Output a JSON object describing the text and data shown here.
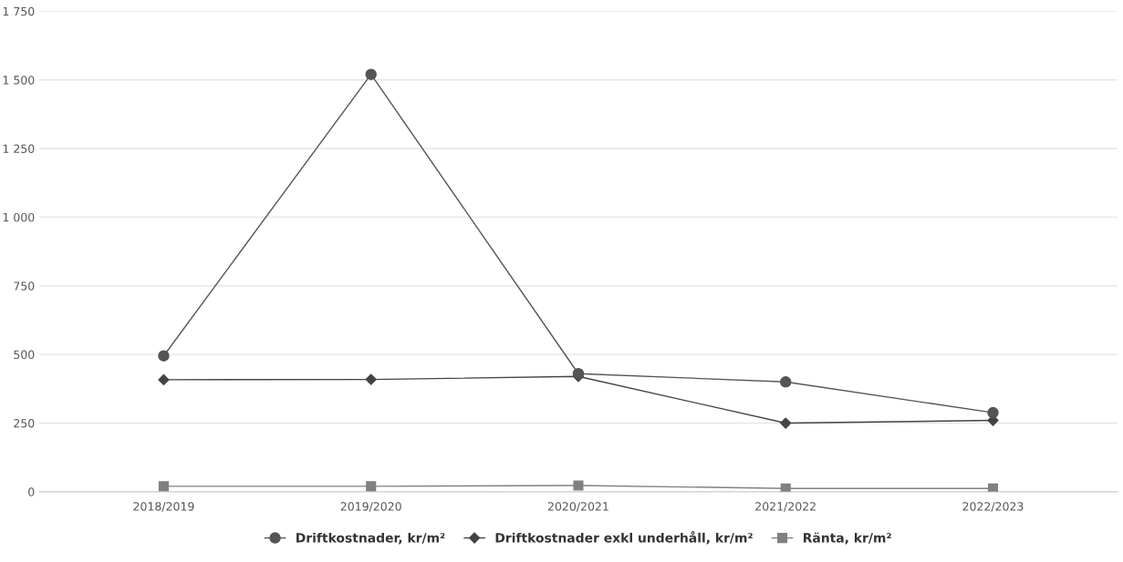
{
  "chart_data": {
    "type": "line",
    "categories": [
      "2018/2019",
      "2019/2020",
      "2020/2021",
      "2021/2022",
      "2022/2023"
    ],
    "series": [
      {
        "name": "Driftkostnader, kr/m²",
        "color": "#555555",
        "marker": "circle",
        "values": [
          495,
          1520,
          430,
          400,
          288
        ]
      },
      {
        "name": "Driftkostnader exkl underhåll, kr/m²",
        "color": "#444444",
        "marker": "diamond",
        "values": [
          408,
          409,
          420,
          250,
          260
        ]
      },
      {
        "name": "Ränta, kr/m²",
        "color": "#808080",
        "marker": "square",
        "values": [
          20,
          20,
          23,
          12,
          12
        ]
      }
    ],
    "ylim": [
      0,
      1750
    ],
    "yticks": [
      0,
      250,
      500,
      750,
      {
        "value": 1000,
        "label": "1 000"
      },
      {
        "value": 1250,
        "label": "1 250"
      },
      {
        "value": 1500,
        "label": "1 500"
      },
      {
        "value": 1750,
        "label": "1 750"
      }
    ],
    "grid": "y",
    "legend": "bottom"
  }
}
